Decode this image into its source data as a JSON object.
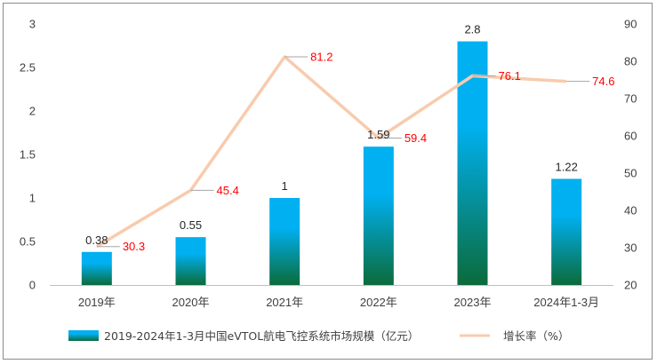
{
  "chart_data": {
    "type": "bar",
    "categories": [
      "2019年",
      "2020年",
      "2021年",
      "2022年",
      "2023年",
      "2024年1-3月"
    ],
    "series": [
      {
        "name": "2019-2024年1-3月中国eVTOL航电飞控系统市场规模（亿元）",
        "type": "bar",
        "axis": "left",
        "values": [
          0.38,
          0.55,
          1,
          1.59,
          2.8,
          1.22
        ],
        "labels": [
          "0.38",
          "0.55",
          "1",
          "1.59",
          "2.8",
          "1.22"
        ]
      },
      {
        "name": "增长率（%）",
        "type": "line",
        "axis": "right",
        "values": [
          30.3,
          45.4,
          81.2,
          59.4,
          76.1,
          74.6
        ],
        "labels": [
          "30.3",
          "45.4",
          "81.2",
          "59.4",
          "76.1",
          "74.6"
        ]
      }
    ],
    "y_left": {
      "ylim": [
        0,
        3
      ],
      "ticks": [
        "0",
        "0.5",
        "1",
        "1.5",
        "2",
        "2.5",
        "3"
      ]
    },
    "y_right": {
      "ylim": [
        20,
        90
      ],
      "ticks": [
        "20",
        "30",
        "40",
        "50",
        "60",
        "70",
        "80",
        "90"
      ]
    },
    "grid": false,
    "legend_position": "bottom",
    "colors": {
      "bar_top": "#00b0f0",
      "bar_bottom": "#0b6b3a",
      "line": "#f8cbad",
      "rate_label": "#ff0000",
      "axis": "#bfbfbf",
      "leader": "#a6a6a6"
    }
  }
}
